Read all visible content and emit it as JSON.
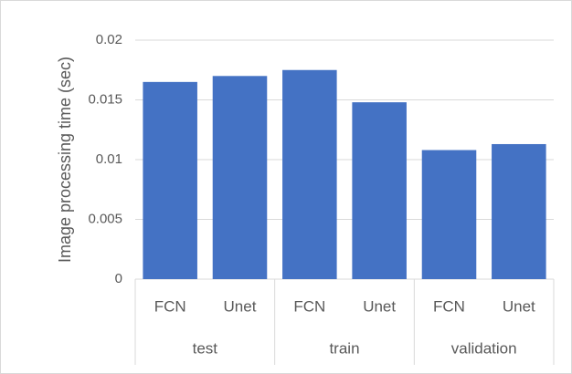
{
  "chart_data": {
    "type": "bar",
    "y_label": "Image processing time (sec)",
    "categories": [
      "FCN",
      "Unet",
      "FCN",
      "Unet",
      "FCN",
      "Unet"
    ],
    "groups": [
      "test",
      "train",
      "validation"
    ],
    "values": [
      0.0165,
      0.017,
      0.0175,
      0.0148,
      0.0108,
      0.0113
    ],
    "color": "#4472c4",
    "ylim": [
      0,
      0.02
    ],
    "yticks": [
      0,
      0.005,
      0.01,
      0.015,
      0.02
    ],
    "grid": true
  }
}
